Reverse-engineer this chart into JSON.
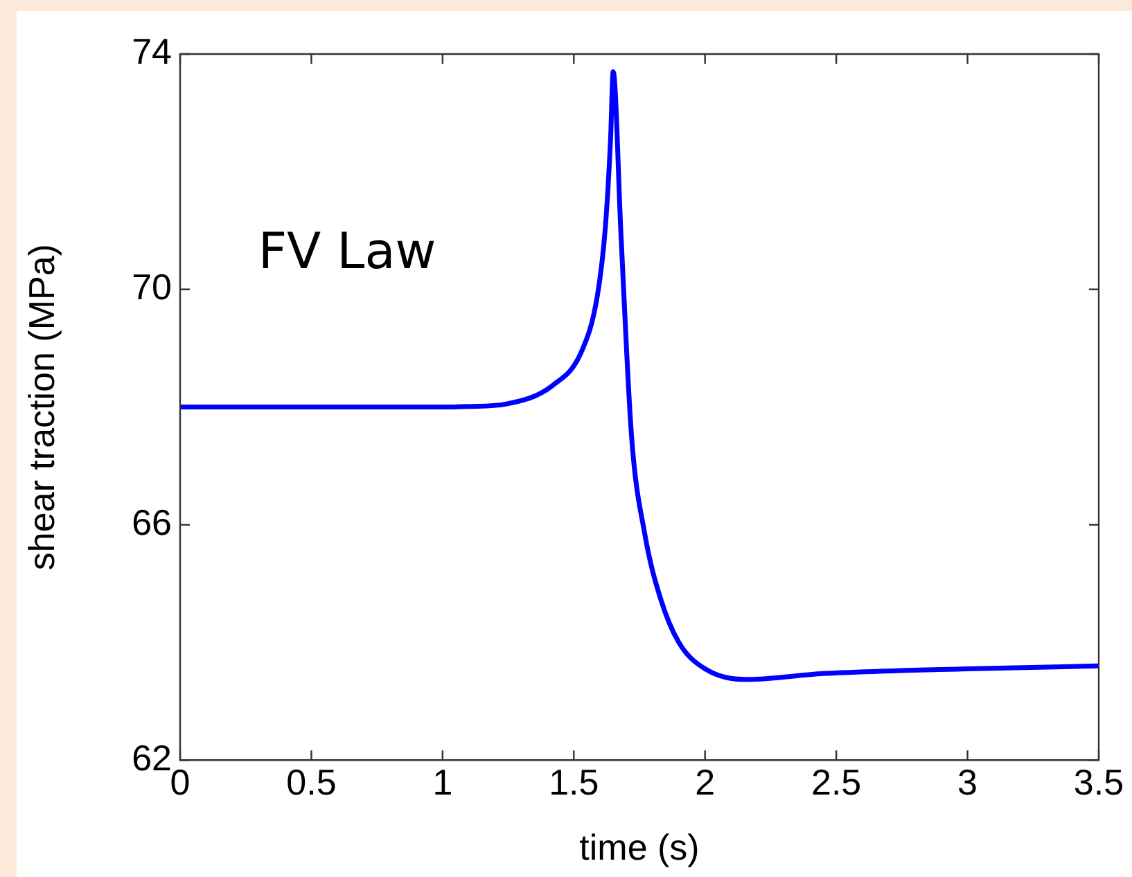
{
  "chart_data": {
    "type": "line",
    "xlabel": "time (s)",
    "ylabel": "shear traction (MPa)",
    "annotations": [
      "FV Law"
    ],
    "xlim": [
      0,
      3.5
    ],
    "xticks": [
      0,
      0.5,
      1,
      1.5,
      2,
      2.5,
      3,
      3.5
    ],
    "ylim": [
      62,
      74
    ],
    "yticks": [
      62,
      66,
      70,
      74
    ],
    "grid": false,
    "legend": false,
    "marker": "none",
    "line_style": "solid",
    "series": [
      {
        "color": "#0000ff",
        "x": [
          0,
          0.5,
          1,
          1.1,
          1.24,
          1.42,
          1.53,
          1.59,
          1.62,
          1.64,
          1.65,
          1.68,
          1.72,
          1.77,
          1.83,
          1.9,
          2,
          2.16,
          2.45,
          3,
          3.5
        ],
        "values": [
          68,
          68,
          68,
          68.01,
          68.05,
          68.37,
          68.95,
          69.9,
          71.05,
          72.55,
          73.7,
          70.9,
          67.5,
          65.85,
          64.75,
          64,
          63.55,
          63.37,
          63.47,
          63.55,
          63.6
        ]
      }
    ]
  }
}
